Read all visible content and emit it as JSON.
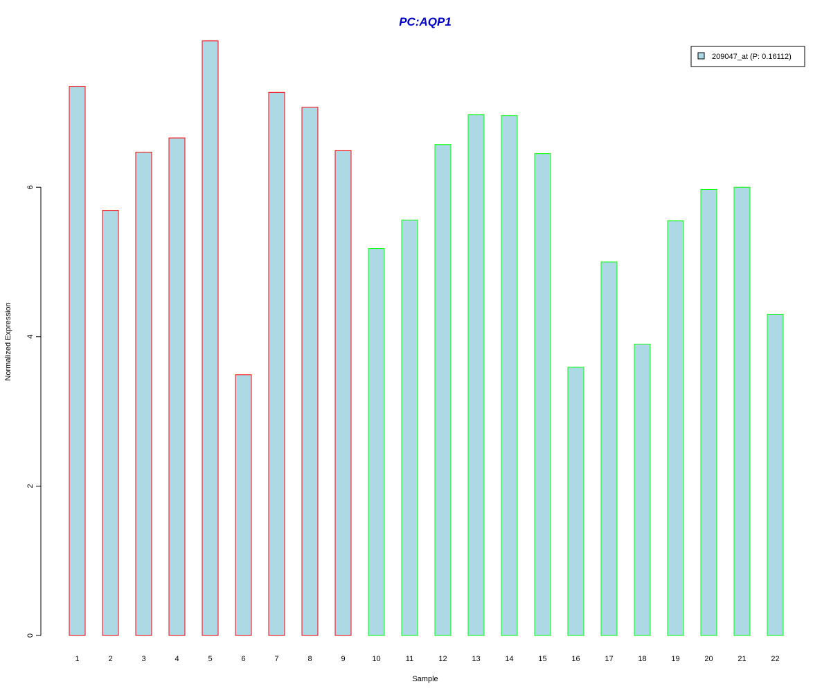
{
  "chart_data": {
    "type": "bar",
    "title": "PC:AQP1",
    "xlabel": "Sample",
    "ylabel": "Normalized Expression",
    "categories": [
      "1",
      "2",
      "3",
      "4",
      "5",
      "6",
      "7",
      "8",
      "9",
      "10",
      "11",
      "12",
      "13",
      "14",
      "15",
      "16",
      "17",
      "18",
      "19",
      "20",
      "21",
      "22"
    ],
    "series": [
      {
        "name": "209047_at (P: 0.16112)",
        "values": [
          7.35,
          5.69,
          6.47,
          6.66,
          7.96,
          3.49,
          7.27,
          7.07,
          6.49,
          5.18,
          5.56,
          6.57,
          6.97,
          6.96,
          6.45,
          3.59,
          5.0,
          3.9,
          5.55,
          5.97,
          6.0,
          4.3
        ]
      }
    ],
    "group_border_colors": [
      "#FF0000",
      "#FF0000",
      "#FF0000",
      "#FF0000",
      "#FF0000",
      "#FF0000",
      "#FF0000",
      "#FF0000",
      "#FF0000",
      "#00FF00",
      "#00FF00",
      "#00FF00",
      "#00FF00",
      "#00FF00",
      "#00FF00",
      "#00FF00",
      "#00FF00",
      "#00FF00",
      "#00FF00",
      "#00FF00",
      "#00FF00",
      "#00FF00"
    ],
    "yticks": [
      0,
      2,
      4,
      6
    ],
    "ylim": [
      0,
      8
    ],
    "bar_fill": "#ADD8E6",
    "title_color": "#0000CC",
    "grid": false,
    "legend_position": "top-right"
  }
}
